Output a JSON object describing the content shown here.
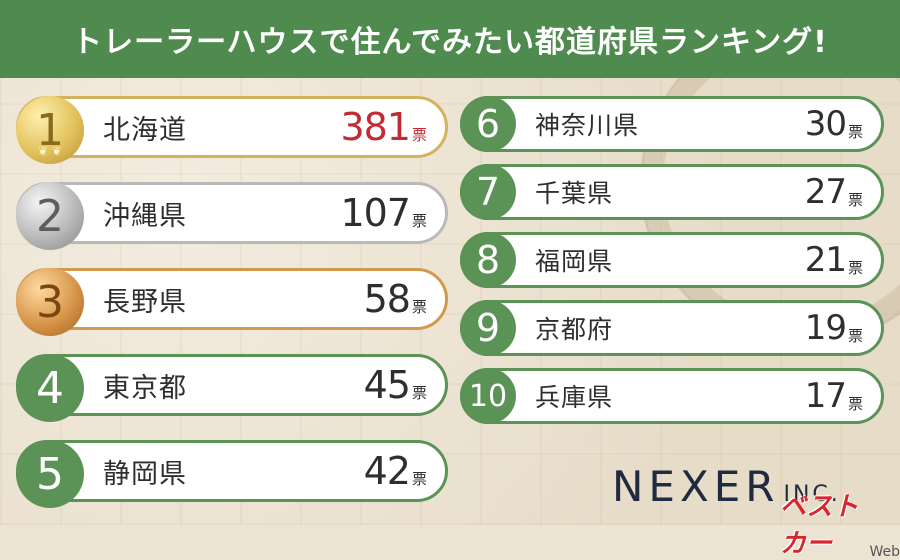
{
  "title": "トレーラーハウスで住んでみたい都道府県ランキング!",
  "unit": "票",
  "logo": {
    "main": "NEXER",
    "suffix": "INC."
  },
  "watermark": {
    "main": "ベストカー",
    "sub": "Web"
  },
  "chart_data": {
    "type": "table",
    "title": "トレーラーハウスで住んでみたい都道府県ランキング!",
    "unit": "票",
    "ranks": [
      "1",
      "2",
      "3",
      "4",
      "5",
      "6",
      "7",
      "8",
      "9",
      "10"
    ],
    "categories": [
      "北海道",
      "沖縄県",
      "長野県",
      "東京都",
      "静岡県",
      "神奈川県",
      "千葉県",
      "福岡県",
      "京都府",
      "兵庫県"
    ],
    "values": [
      381,
      107,
      58,
      45,
      42,
      30,
      27,
      21,
      19,
      17
    ],
    "colors": {
      "header": "#4f8a4e",
      "gold": "#d2b35c",
      "silver": "#b9b9b9",
      "bronze": "#cf9a4e",
      "green": "#5b9356",
      "highlight": "#c42a33"
    }
  }
}
